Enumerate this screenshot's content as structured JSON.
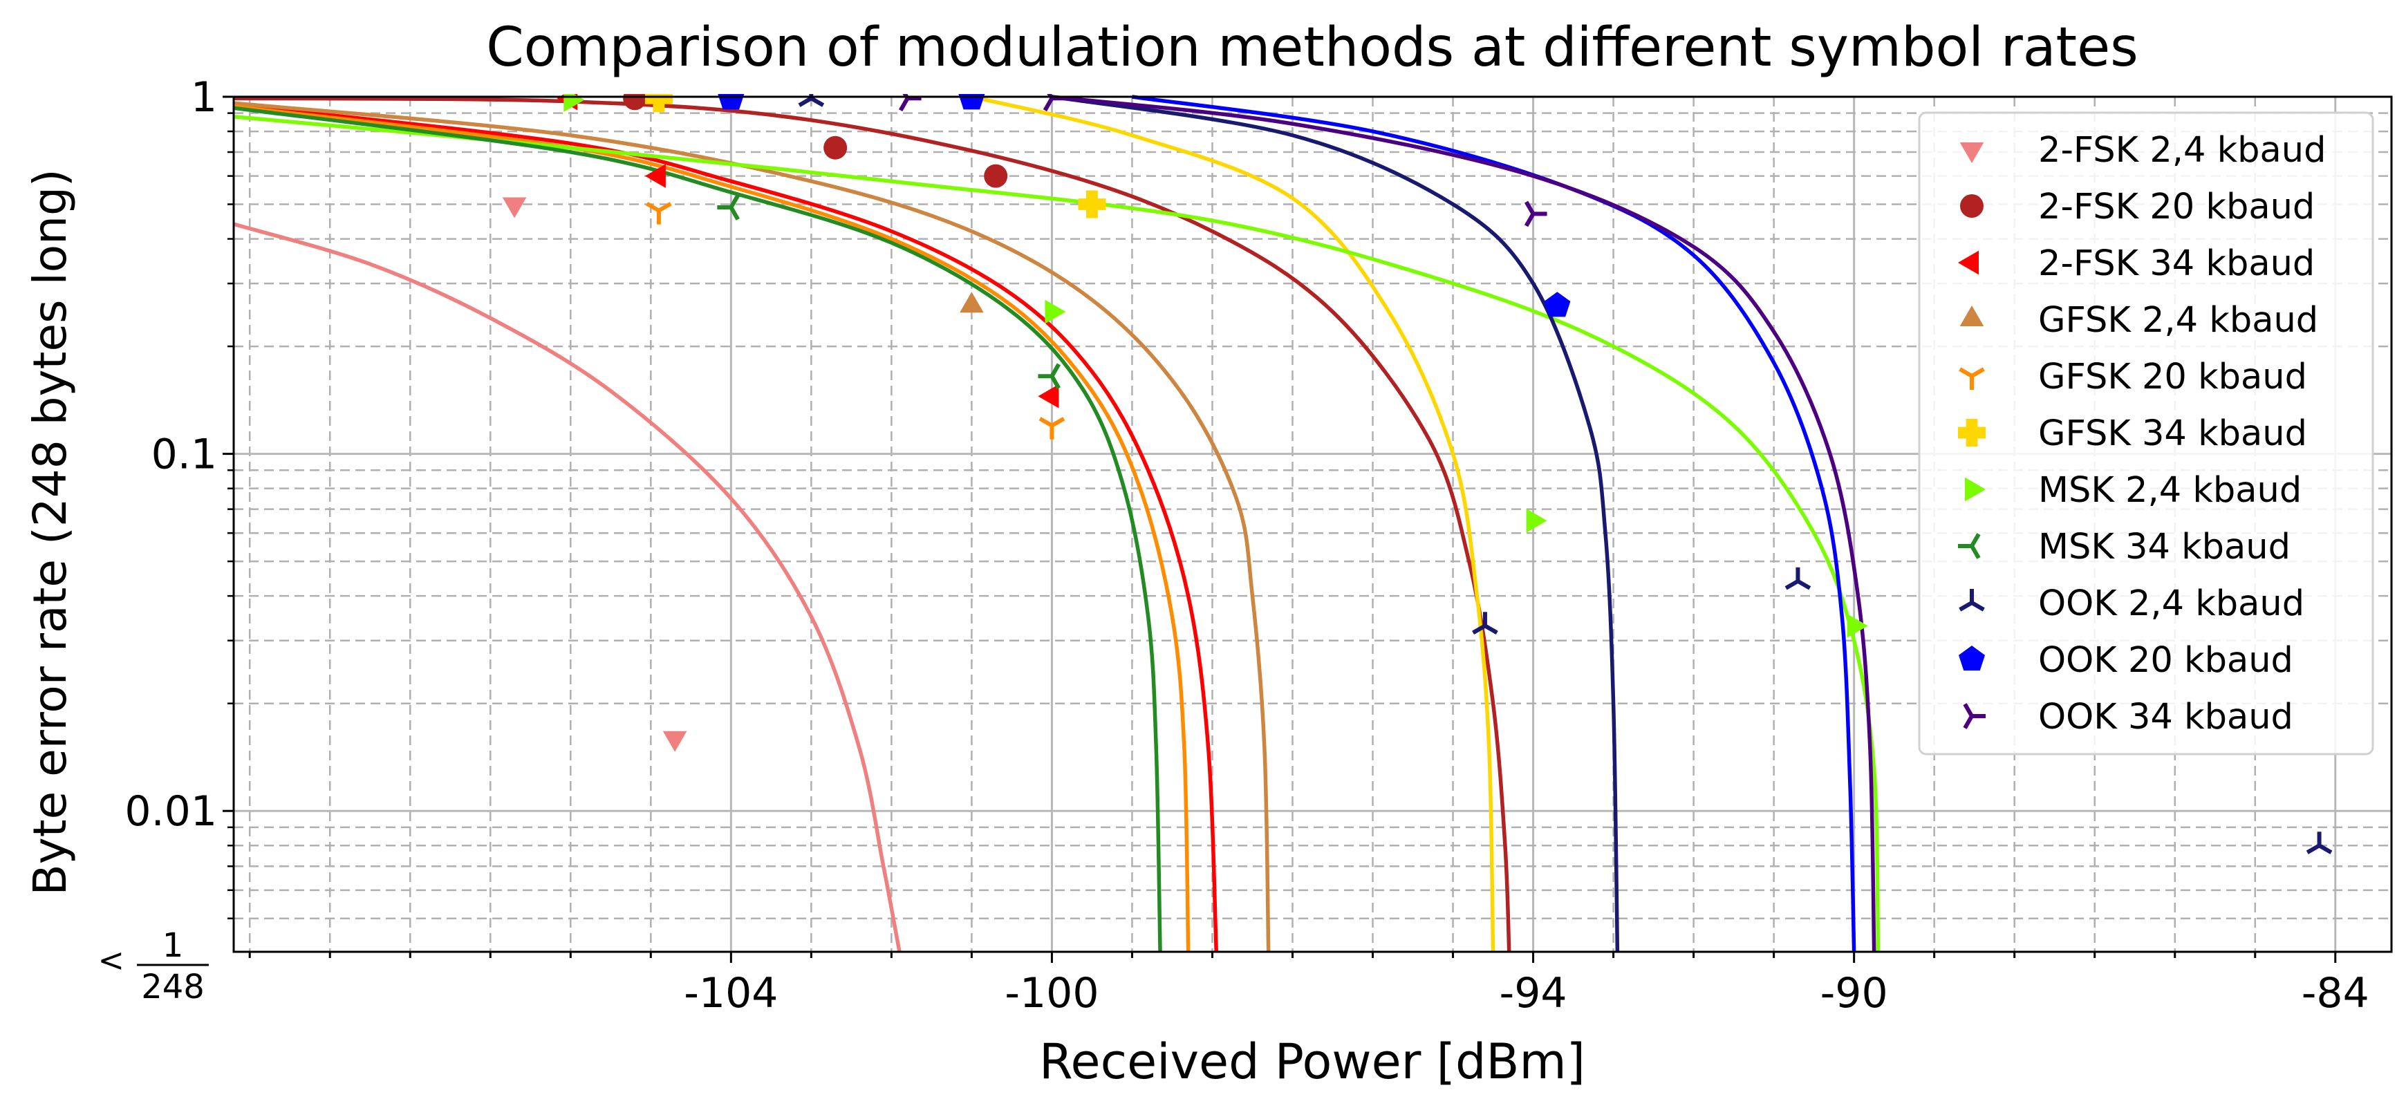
{
  "chart_data": {
    "type": "scatter",
    "title": "Comparison of modulation methods at different symbol rates",
    "xlabel": "Received Power [dBm]",
    "ylabel": "Byte error rate (248 bytes long)",
    "xlim": [
      -110.2,
      -83.3
    ],
    "ylim": [
      0.004032,
      1.0
    ],
    "yscale": "log",
    "xticks": [
      {
        "value": -104,
        "label": "-104"
      },
      {
        "value": -100,
        "label": "-100"
      },
      {
        "value": -94,
        "label": "-94"
      },
      {
        "value": -90,
        "label": "-90"
      },
      {
        "value": -84,
        "label": "-84"
      }
    ],
    "yticks": [
      {
        "value": 1,
        "label": "1"
      },
      {
        "value": 0.1,
        "label": "0.1"
      },
      {
        "value": 0.01,
        "label": "0.01"
      }
    ],
    "ymin_label": {
      "prefix": "<",
      "numerator": "1",
      "denominator": "248"
    },
    "grid": true,
    "legend_position": "upper-right",
    "series": [
      {
        "name": "2-FSK 2,4 kbaud",
        "color": "#f08080",
        "marker": "triangle-down",
        "points": [
          [
            -106.7,
            0.5
          ],
          [
            -104.7,
            0.016
          ]
        ],
        "curve": [
          [
            -110.2,
            0.44
          ],
          [
            -108.5,
            0.34
          ],
          [
            -107.0,
            0.24
          ],
          [
            -105.5,
            0.15
          ],
          [
            -104.0,
            0.075
          ],
          [
            -103.0,
            0.035
          ],
          [
            -102.4,
            0.015
          ],
          [
            -102.1,
            0.007
          ],
          [
            -101.9,
            0.004032
          ]
        ]
      },
      {
        "name": "2-FSK 20 kbaud",
        "color": "#b22222",
        "marker": "circle",
        "points": [
          [
            -105.2,
            0.99
          ],
          [
            -102.7,
            0.72
          ],
          [
            -100.7,
            0.6
          ]
        ],
        "curve": [
          [
            -110.2,
            0.99
          ],
          [
            -106.0,
            0.97
          ],
          [
            -103.0,
            0.86
          ],
          [
            -100.0,
            0.62
          ],
          [
            -98.0,
            0.42
          ],
          [
            -96.5,
            0.25
          ],
          [
            -95.3,
            0.11
          ],
          [
            -94.8,
            0.05
          ],
          [
            -94.5,
            0.02
          ],
          [
            -94.35,
            0.008
          ],
          [
            -94.3,
            0.004032
          ]
        ]
      },
      {
        "name": "2-FSK 34 kbaud",
        "color": "#ff0000",
        "marker": "triangle-left",
        "points": [
          [
            -106.0,
            0.99
          ],
          [
            -104.9,
            0.6
          ],
          [
            -100.0,
            0.145
          ]
        ],
        "curve": [
          [
            -110.2,
            0.95
          ],
          [
            -106.0,
            0.74
          ],
          [
            -104.0,
            0.58
          ],
          [
            -102.0,
            0.42
          ],
          [
            -100.5,
            0.28
          ],
          [
            -99.5,
            0.17
          ],
          [
            -98.8,
            0.09
          ],
          [
            -98.3,
            0.04
          ],
          [
            -98.05,
            0.015
          ],
          [
            -97.95,
            0.004032
          ]
        ]
      },
      {
        "name": "GFSK 2,4 kbaud",
        "color": "#cd853f",
        "marker": "triangle-up",
        "points": [
          [
            -101.0,
            0.26
          ]
        ],
        "curve": [
          [
            -110.2,
            0.96
          ],
          [
            -106.0,
            0.78
          ],
          [
            -103.0,
            0.58
          ],
          [
            -101.0,
            0.42
          ],
          [
            -99.5,
            0.27
          ],
          [
            -98.4,
            0.15
          ],
          [
            -97.7,
            0.075
          ],
          [
            -97.5,
            0.04
          ],
          [
            -97.35,
            0.015
          ],
          [
            -97.3,
            0.004032
          ]
        ]
      },
      {
        "name": "GFSK 20 kbaud",
        "color": "#ff8c00",
        "marker": "tri-down",
        "points": [
          [
            -104.9,
            0.48
          ],
          [
            -100.0,
            0.12
          ]
        ],
        "curve": [
          [
            -110.2,
            0.94
          ],
          [
            -106.0,
            0.72
          ],
          [
            -104.0,
            0.56
          ],
          [
            -102.0,
            0.4
          ],
          [
            -100.5,
            0.26
          ],
          [
            -99.5,
            0.15
          ],
          [
            -98.9,
            0.08
          ],
          [
            -98.5,
            0.035
          ],
          [
            -98.35,
            0.015
          ],
          [
            -98.3,
            0.004032
          ]
        ]
      },
      {
        "name": "GFSK 34 kbaud",
        "color": "#ffd700",
        "marker": "plus",
        "points": [
          [
            -104.9,
            0.99
          ],
          [
            -99.5,
            0.5
          ]
        ],
        "curve": [
          [
            -101.0,
            1.0
          ],
          [
            -99.0,
            0.78
          ],
          [
            -97.0,
            0.52
          ],
          [
            -95.8,
            0.25
          ],
          [
            -95.0,
            0.1
          ],
          [
            -94.7,
            0.04
          ],
          [
            -94.55,
            0.015
          ],
          [
            -94.5,
            0.004032
          ]
        ]
      },
      {
        "name": "MSK 2,4 kbaud",
        "color": "#7cfc00",
        "marker": "triangle-right",
        "points": [
          [
            -106.0,
            0.98
          ],
          [
            -100.0,
            0.25
          ],
          [
            -94.0,
            0.065
          ],
          [
            -90.0,
            0.033
          ]
        ],
        "curve": [
          [
            -110.2,
            0.88
          ],
          [
            -106.0,
            0.72
          ],
          [
            -102.0,
            0.58
          ],
          [
            -98.0,
            0.45
          ],
          [
            -95.0,
            0.3
          ],
          [
            -93.0,
            0.2
          ],
          [
            -91.5,
            0.12
          ],
          [
            -90.5,
            0.06
          ],
          [
            -90.0,
            0.03
          ],
          [
            -89.75,
            0.013
          ],
          [
            -89.7,
            0.004032
          ]
        ]
      },
      {
        "name": "MSK 34 kbaud",
        "color": "#228b22",
        "marker": "tri-left",
        "points": [
          [
            -104.0,
            0.49
          ],
          [
            -100.0,
            0.165
          ]
        ],
        "curve": [
          [
            -110.2,
            0.93
          ],
          [
            -106.0,
            0.7
          ],
          [
            -104.0,
            0.54
          ],
          [
            -102.0,
            0.39
          ],
          [
            -100.5,
            0.25
          ],
          [
            -99.6,
            0.15
          ],
          [
            -99.1,
            0.08
          ],
          [
            -98.8,
            0.035
          ],
          [
            -98.7,
            0.015
          ],
          [
            -98.65,
            0.004032
          ]
        ]
      },
      {
        "name": "OOK 2,4 kbaud",
        "color": "#191970",
        "marker": "tri-up",
        "points": [
          [
            -103.0,
            0.99
          ],
          [
            -94.6,
            0.033
          ],
          [
            -90.7,
            0.044
          ],
          [
            -84.2,
            0.008
          ]
        ],
        "curve": [
          [
            -100.0,
            1.0
          ],
          [
            -97.0,
            0.78
          ],
          [
            -95.0,
            0.5
          ],
          [
            -94.0,
            0.3
          ],
          [
            -93.3,
            0.12
          ],
          [
            -93.1,
            0.06
          ],
          [
            -93.0,
            0.02
          ],
          [
            -92.95,
            0.004032
          ]
        ]
      },
      {
        "name": "OOK 20 kbaud",
        "color": "#0000ff",
        "marker": "pentagon",
        "points": [
          [
            -104.0,
            0.99
          ],
          [
            -101.0,
            0.99
          ],
          [
            -93.7,
            0.26
          ]
        ],
        "curve": [
          [
            -99.0,
            1.0
          ],
          [
            -96.0,
            0.8
          ],
          [
            -93.5,
            0.55
          ],
          [
            -92.0,
            0.36
          ],
          [
            -91.0,
            0.18
          ],
          [
            -90.4,
            0.08
          ],
          [
            -90.15,
            0.035
          ],
          [
            -90.05,
            0.012
          ],
          [
            -90.0,
            0.004032
          ]
        ]
      },
      {
        "name": "OOK 34 kbaud",
        "color": "#4b0082",
        "marker": "tri-right",
        "points": [
          [
            -101.8,
            0.99
          ],
          [
            -100.0,
            0.99
          ],
          [
            -94.0,
            0.47
          ]
        ],
        "curve": [
          [
            -100.0,
            1.0
          ],
          [
            -97.0,
            0.84
          ],
          [
            -94.0,
            0.6
          ],
          [
            -92.0,
            0.38
          ],
          [
            -91.0,
            0.22
          ],
          [
            -90.3,
            0.1
          ],
          [
            -89.95,
            0.04
          ],
          [
            -89.8,
            0.015
          ],
          [
            -89.75,
            0.004032
          ]
        ]
      }
    ]
  }
}
